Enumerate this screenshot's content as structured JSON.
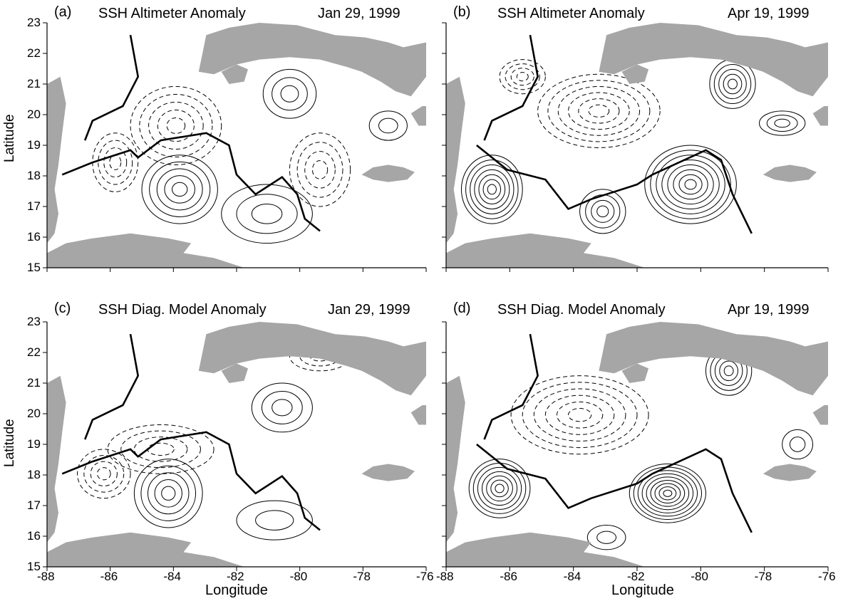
{
  "figure": {
    "y_axis_label": "Latitude",
    "x_axis_label": "Longitude",
    "y_ticks": [
      "15",
      "16",
      "17",
      "18",
      "19",
      "20",
      "21",
      "22",
      "23"
    ],
    "x_ticks": [
      "-88",
      "-86",
      "-84",
      "-82",
      "-80",
      "-78",
      "-76"
    ]
  },
  "panels": [
    {
      "id": "a",
      "tag": "(a)",
      "title": "SSH Altimeter Anomaly",
      "date": "Jan 29, 1999"
    },
    {
      "id": "b",
      "tag": "(b)",
      "title": "SSH Altimeter Anomaly",
      "date": "Apr 19, 1999"
    },
    {
      "id": "c",
      "tag": "(c)",
      "title": "SSH Diag. Model Anomaly",
      "date": "Jan 29, 1999"
    },
    {
      "id": "d",
      "tag": "(d)",
      "title": "SSH Diag. Model Anomaly",
      "date": "Apr 19, 1999"
    }
  ],
  "colors": {
    "land": "#a6a6a6",
    "contour": "#000000",
    "background": "#ffffff"
  }
}
